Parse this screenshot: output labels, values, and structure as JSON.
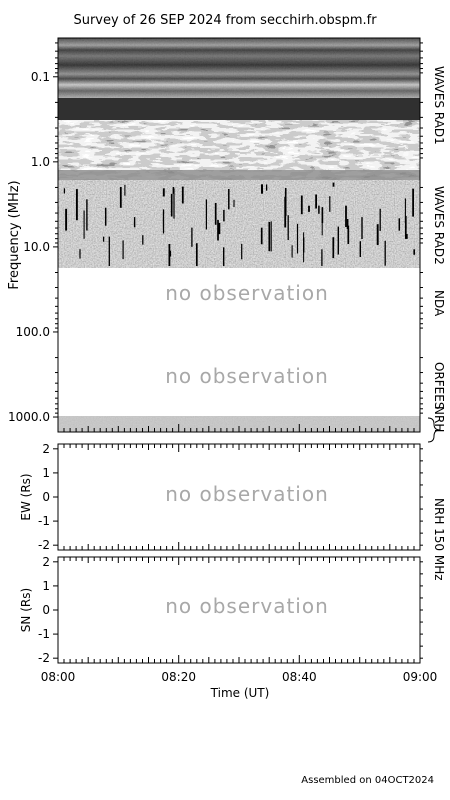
{
  "title": "Survey of 26 SEP 2024 from secchirh.obspm.fr",
  "footer": "Assembled on 04OCT2024",
  "no_observation_text": "no observation",
  "chart_data": [
    {
      "type": "heatmap",
      "name_panel": "spectrogram",
      "ylabel": "Frequency (MHz)",
      "yscale": "log-inverted",
      "ylim": [
        0.035,
        1500
      ],
      "yticks": [
        {
          "value": 0.1,
          "label": "0.1"
        },
        {
          "value": 1.0,
          "label": "1.0"
        },
        {
          "value": 10.0,
          "label": "10.0"
        },
        {
          "value": 100.0,
          "label": "100.0"
        },
        {
          "value": 1000.0,
          "label": "1000.0"
        }
      ],
      "bands": [
        {
          "label": "WAVES RAD1",
          "freq_range": [
            0.035,
            1.0
          ],
          "observed": true
        },
        {
          "label": "WAVES RAD2",
          "freq_range": [
            1.0,
            16.0
          ],
          "observed": true
        },
        {
          "label": "NDA",
          "freq_range": [
            16.0,
            150.0
          ],
          "observed": false
        },
        {
          "label": "ORFEES",
          "freq_range": [
            150.0,
            1000.0
          ],
          "observed": false
        },
        {
          "label": "NRH",
          "freq_range": [
            1000.0,
            1500.0
          ],
          "observed": true
        }
      ]
    },
    {
      "type": "line",
      "name_panel": "ew",
      "ylabel": "EW (Rs)",
      "ylim": [
        -2.2,
        2.2
      ],
      "yticks": [
        2,
        1,
        0,
        -1,
        -2
      ],
      "observed": false
    },
    {
      "type": "line",
      "name_panel": "sn",
      "ylabel": "SN (Rs)",
      "ylim": [
        -2.2,
        2.2
      ],
      "yticks": [
        2,
        1,
        0,
        -1,
        -2
      ],
      "observed": false
    }
  ],
  "right_labels": [
    "WAVES RAD1",
    "WAVES RAD2",
    "NDA",
    "ORFEES",
    "NRH",
    "NRH 150 MHz"
  ],
  "xaxis": {
    "label": "Time (UT)",
    "ticks": [
      "08:00",
      "08:20",
      "08:40",
      "09:00"
    ]
  }
}
